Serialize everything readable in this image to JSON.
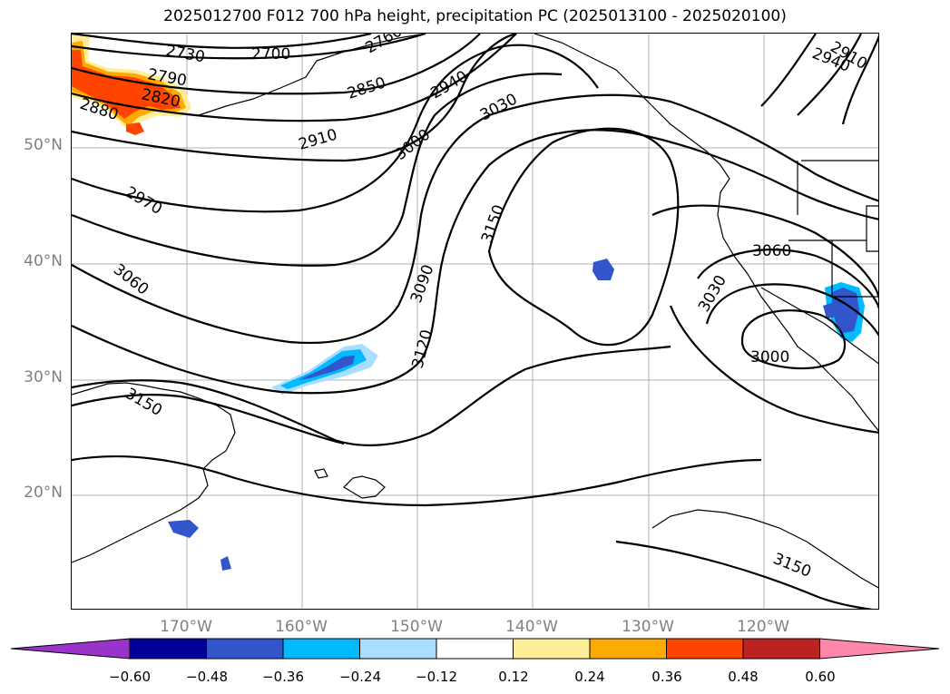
{
  "title": "2025012700 F012 700 hPa height, precipitation PC (2025013100 - 2025020100)",
  "map": {
    "lat_labels": [
      "50°N",
      "40°N",
      "30°N",
      "20°N"
    ],
    "lon_labels": [
      "170°W",
      "160°W",
      "150°W",
      "140°W",
      "130°W",
      "120°W"
    ],
    "contour_labels": [
      "2730",
      "2700",
      "2760",
      "2790",
      "2820",
      "2880",
      "2850",
      "2940",
      "3030",
      "2910",
      "3000",
      "2970",
      "2940",
      "2910",
      "3150",
      "3060",
      "3090",
      "3120",
      "3060",
      "3030",
      "3000",
      "3150",
      "3150"
    ]
  },
  "colorbar": {
    "ticks": [
      "−0.60",
      "−0.48",
      "−0.36",
      "−0.24",
      "−0.12",
      "0.12",
      "0.24",
      "0.36",
      "0.48",
      "0.60"
    ],
    "colors": [
      "#9933cc",
      "#000099",
      "#3355cc",
      "#00bbff",
      "#aaddff",
      "#ffffff",
      "#ffee99",
      "#ffaa00",
      "#ff4400",
      "#bb2222",
      "#ff88aa"
    ]
  }
}
